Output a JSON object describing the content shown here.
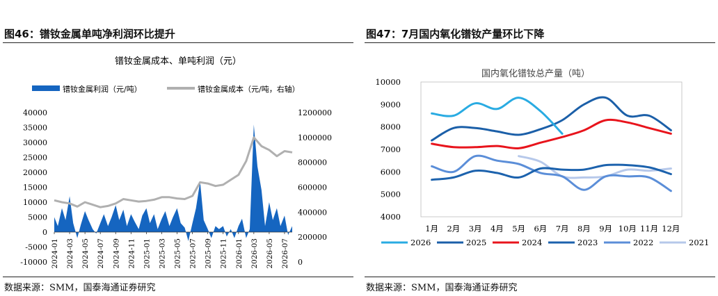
{
  "left": {
    "figure_title": "图46：镨钕金属单吨净利润环比提升",
    "source": "数据来源：SMM，国泰海通证券研究"
  },
  "right": {
    "figure_title": "图47：7月国内氧化镨钕产量环比下降",
    "source": "数据来源：SMM，国泰海通证券研究"
  },
  "chart_data": [
    {
      "type": "area",
      "title": "镨钕金属成本、单吨利润（元）",
      "x_tick_labels": [
        "2024-01",
        "2024-03",
        "2024-05",
        "2024-07",
        "2024-09",
        "2024-11",
        "2025-01",
        "2025-03",
        "2025-05",
        "2025-07",
        "2025-09",
        "2025-11",
        "2026-01",
        "2026-03",
        "2026-05",
        "2026-07"
      ],
      "x_range": [
        "2024-01",
        "2026-08"
      ],
      "y_left_range": [
        -10000,
        40000
      ],
      "y_left_ticks": [
        -10000,
        -5000,
        0,
        5000,
        10000,
        15000,
        20000,
        25000,
        30000,
        35000,
        40000
      ],
      "y_right_range": [
        0,
        1200000
      ],
      "y_right_ticks": [
        0,
        200000,
        400000,
        600000,
        800000,
        1000000,
        1200000
      ],
      "legend_position": "top",
      "grid": false,
      "colors": {
        "profit": "#1565c0",
        "cost": "#b0b0b0"
      },
      "series": [
        {
          "name": "镨钕金属利润（元/吨）",
          "axis": "left",
          "type": "area",
          "points": [
            [
              "2024-01",
              5000
            ],
            [
              "2024-01-15",
              2000
            ],
            [
              "2024-02",
              8000
            ],
            [
              "2024-02-15",
              4000
            ],
            [
              "2024-03",
              12000
            ],
            [
              "2024-03-15",
              3000
            ],
            [
              "2024-04",
              -2000
            ],
            [
              "2024-04-15",
              2500
            ],
            [
              "2024-05",
              7000
            ],
            [
              "2024-05-15",
              4000
            ],
            [
              "2024-06",
              1000
            ],
            [
              "2024-06-15",
              -500
            ],
            [
              "2024-07",
              3000
            ],
            [
              "2024-07-15",
              6000
            ],
            [
              "2024-08",
              2000
            ],
            [
              "2024-08-15",
              5000
            ],
            [
              "2024-09",
              9000
            ],
            [
              "2024-09-15",
              4000
            ],
            [
              "2024-10",
              7500
            ],
            [
              "2024-10-15",
              2000
            ],
            [
              "2024-11",
              6000
            ],
            [
              "2024-11-15",
              3500
            ],
            [
              "2024-12",
              1000
            ],
            [
              "2024-12-15",
              5500
            ],
            [
              "2025-01",
              8000
            ],
            [
              "2025-01-15",
              3000
            ],
            [
              "2025-02",
              6000
            ],
            [
              "2025-02-15",
              1000
            ],
            [
              "2025-03",
              4500
            ],
            [
              "2025-03-15",
              7000
            ],
            [
              "2025-04",
              2000
            ],
            [
              "2025-04-15",
              5000
            ],
            [
              "2025-05",
              8000
            ],
            [
              "2025-05-15",
              3000
            ],
            [
              "2025-06",
              1500
            ],
            [
              "2025-06-15",
              -3000
            ],
            [
              "2025-07",
              3000
            ],
            [
              "2025-07-15",
              8000
            ],
            [
              "2025-08",
              17000
            ],
            [
              "2025-08-15",
              4000
            ],
            [
              "2025-09",
              1000
            ],
            [
              "2025-09-15",
              -2000
            ],
            [
              "2025-10",
              2000
            ],
            [
              "2025-10-15",
              1000
            ],
            [
              "2025-11",
              2000
            ],
            [
              "2025-11-15",
              -1500
            ],
            [
              "2025-12",
              1000
            ],
            [
              "2025-12-15",
              -2000
            ],
            [
              "2026-01",
              2000
            ],
            [
              "2026-01-15",
              4500
            ],
            [
              "2026-02",
              -2000
            ],
            [
              "2026-02-15",
              1000
            ],
            [
              "2026-03",
              36000
            ],
            [
              "2026-03-15",
              22000
            ],
            [
              "2026-04",
              14000
            ],
            [
              "2026-04-15",
              2000
            ],
            [
              "2026-05",
              10000
            ],
            [
              "2026-05-15",
              4000
            ],
            [
              "2026-06",
              8000
            ],
            [
              "2026-06-15",
              2000
            ],
            [
              "2026-07",
              5500
            ],
            [
              "2026-07-15",
              -1000
            ],
            [
              "2026-08",
              2000
            ]
          ]
        },
        {
          "name": "镨钕金属成本（元/吨，右轴）",
          "axis": "right",
          "type": "line",
          "points": [
            [
              "2024-01",
              495000
            ],
            [
              "2024-02",
              480000
            ],
            [
              "2024-03",
              470000
            ],
            [
              "2024-04",
              445000
            ],
            [
              "2024-05",
              480000
            ],
            [
              "2024-06",
              460000
            ],
            [
              "2024-07",
              440000
            ],
            [
              "2024-08",
              450000
            ],
            [
              "2024-09",
              470000
            ],
            [
              "2024-10",
              505000
            ],
            [
              "2024-11",
              495000
            ],
            [
              "2024-12",
              485000
            ],
            [
              "2025-01",
              490000
            ],
            [
              "2025-02",
              500000
            ],
            [
              "2025-03",
              520000
            ],
            [
              "2025-04",
              520000
            ],
            [
              "2025-05",
              510000
            ],
            [
              "2025-06",
              505000
            ],
            [
              "2025-07",
              530000
            ],
            [
              "2025-08",
              640000
            ],
            [
              "2025-09",
              630000
            ],
            [
              "2025-10",
              610000
            ],
            [
              "2025-11",
              620000
            ],
            [
              "2025-12",
              660000
            ],
            [
              "2026-01",
              700000
            ],
            [
              "2026-02",
              810000
            ],
            [
              "2026-03",
              1000000
            ],
            [
              "2026-04",
              930000
            ],
            [
              "2026-05",
              900000
            ],
            [
              "2026-06",
              850000
            ],
            [
              "2026-07",
              890000
            ],
            [
              "2026-08",
              880000
            ]
          ]
        }
      ]
    },
    {
      "type": "line",
      "title": "国内氧化镨钕总产量（吨）",
      "categories": [
        "1月",
        "2月",
        "3月",
        "4月",
        "5月",
        "6月",
        "7月",
        "8月",
        "9月",
        "10月",
        "11月",
        "12月"
      ],
      "ylim": [
        4000,
        10000
      ],
      "y_ticks": [
        4000,
        5000,
        6000,
        7000,
        8000,
        9000,
        10000
      ],
      "grid": false,
      "legend_position": "bottom",
      "series": [
        {
          "name": "2026",
          "color": "#29abe2",
          "values": [
            8600,
            8500,
            9050,
            8800,
            9300,
            8700,
            7700,
            null,
            null,
            null,
            null,
            null
          ]
        },
        {
          "name": "2025",
          "color": "#1b5fa8",
          "values": [
            7400,
            7950,
            7950,
            7800,
            7650,
            7900,
            8300,
            9000,
            9300,
            8500,
            8500,
            7850
          ]
        },
        {
          "name": "2024",
          "color": "#e8141c",
          "values": [
            7250,
            7100,
            7100,
            7150,
            7050,
            7300,
            7550,
            7850,
            8300,
            8200,
            7950,
            7700
          ]
        },
        {
          "name": "2023",
          "color": "#1c62ad",
          "values": [
            5650,
            5750,
            6050,
            5950,
            5750,
            6150,
            6100,
            6100,
            6300,
            6300,
            6200,
            5900
          ]
        },
        {
          "name": "2022",
          "color": "#5b8ed8",
          "values": [
            6250,
            6000,
            6700,
            6500,
            6350,
            5950,
            5800,
            5200,
            5800,
            5800,
            5750,
            5150
          ]
        },
        {
          "name": "2021",
          "color": "#b6c8ea",
          "values": [
            null,
            null,
            null,
            null,
            6700,
            6450,
            5800,
            5750,
            5800,
            6100,
            6050,
            6150
          ]
        }
      ]
    }
  ]
}
